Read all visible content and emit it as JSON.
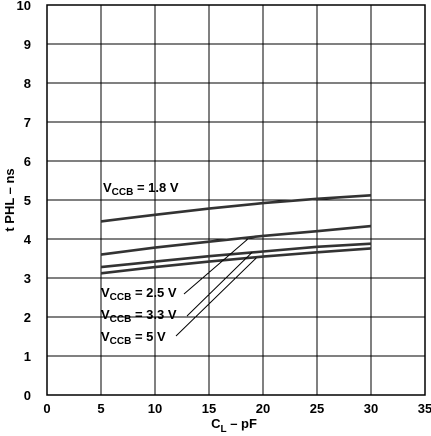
{
  "chart_data": {
    "type": "line",
    "xlabel_main": "C",
    "xlabel_sub": "L",
    "xlabel_rest": " – pF",
    "ylabel": "t PHL – ns",
    "xlim": [
      0,
      35
    ],
    "ylim": [
      0,
      10
    ],
    "x_ticks": [
      0,
      5,
      10,
      15,
      20,
      25,
      30,
      35
    ],
    "y_ticks": [
      0,
      1,
      2,
      3,
      4,
      5,
      6,
      7,
      8,
      9,
      10
    ],
    "grid": true,
    "series": [
      {
        "name_main": "V",
        "name_sub": "CCB",
        "name_rest": " = 1.8 V",
        "x": [
          5,
          10,
          15,
          20,
          25,
          30
        ],
        "values": [
          4.45,
          4.62,
          4.78,
          4.92,
          5.03,
          5.12
        ]
      },
      {
        "name_main": "V",
        "name_sub": "CCB",
        "name_rest": " = 2.5 V",
        "x": [
          5,
          10,
          15,
          20,
          25,
          30
        ],
        "values": [
          3.6,
          3.78,
          3.93,
          4.08,
          4.2,
          4.33
        ]
      },
      {
        "name_main": "V",
        "name_sub": "CCB",
        "name_rest": " = 3.3 V",
        "x": [
          5,
          10,
          15,
          20,
          25,
          30
        ],
        "values": [
          3.28,
          3.42,
          3.56,
          3.68,
          3.8,
          3.88
        ]
      },
      {
        "name_main": "V",
        "name_sub": "CCB",
        "name_rest": " = 5 V",
        "x": [
          5,
          10,
          15,
          20,
          25,
          30
        ],
        "values": [
          3.12,
          3.28,
          3.42,
          3.55,
          3.66,
          3.76
        ]
      }
    ]
  }
}
